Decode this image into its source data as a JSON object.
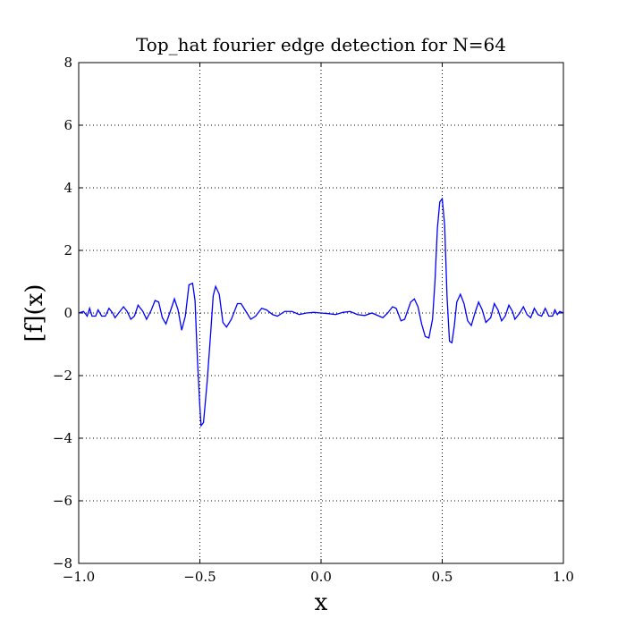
{
  "chart_data": {
    "type": "line",
    "title": "Top_hat fourier edge detection for N=64",
    "x_label": "x",
    "y_label": "[f](x)",
    "color": "#0000ff",
    "grid": true,
    "xlim": [
      -1.0,
      1.0
    ],
    "ylim": [
      -8,
      8
    ],
    "xticks": [
      {
        "value": -1.0,
        "label": "−1.0"
      },
      {
        "value": -0.5,
        "label": "−0.5"
      },
      {
        "value": 0,
        "label": "0.0"
      },
      0.5,
      {
        "value": 1.0,
        "label": "1.0"
      }
    ],
    "yticks": [
      {
        "value": -8,
        "label": "−8"
      },
      {
        "value": -6,
        "label": "−6"
      },
      {
        "value": -4,
        "label": "−4"
      },
      {
        "value": -2,
        "label": "−2"
      },
      0,
      2,
      4,
      6,
      8
    ],
    "x": [
      -1.0,
      -0.98,
      -0.965,
      -0.955,
      -0.945,
      -0.93,
      -0.92,
      -0.905,
      -0.89,
      -0.875,
      -0.86,
      -0.85,
      -0.83,
      -0.815,
      -0.8,
      -0.785,
      -0.77,
      -0.755,
      -0.735,
      -0.72,
      -0.7,
      -0.685,
      -0.67,
      -0.655,
      -0.64,
      -0.62,
      -0.605,
      -0.59,
      -0.575,
      -0.56,
      -0.545,
      -0.53,
      -0.52,
      -0.51,
      -0.5,
      -0.495,
      -0.485,
      -0.47,
      -0.455,
      -0.445,
      -0.435,
      -0.42,
      -0.405,
      -0.39,
      -0.37,
      -0.345,
      -0.33,
      -0.31,
      -0.29,
      -0.27,
      -0.245,
      -0.225,
      -0.2,
      -0.18,
      -0.15,
      -0.12,
      -0.09,
      -0.06,
      -0.03,
      0.0,
      0.03,
      0.06,
      0.09,
      0.12,
      0.15,
      0.18,
      0.21,
      0.24,
      0.255,
      0.275,
      0.295,
      0.31,
      0.33,
      0.345,
      0.37,
      0.385,
      0.4,
      0.415,
      0.43,
      0.445,
      0.46,
      0.47,
      0.48,
      0.49,
      0.5,
      0.51,
      0.52,
      0.53,
      0.54,
      0.55,
      0.56,
      0.575,
      0.59,
      0.605,
      0.62,
      0.635,
      0.65,
      0.665,
      0.68,
      0.7,
      0.715,
      0.73,
      0.745,
      0.76,
      0.775,
      0.79,
      0.8,
      0.82,
      0.835,
      0.85,
      0.865,
      0.88,
      0.895,
      0.91,
      0.925,
      0.94,
      0.955,
      0.965,
      0.975,
      0.985,
      1.0
    ],
    "values": [
      0.0,
      0.05,
      -0.1,
      0.15,
      -0.1,
      -0.1,
      0.1,
      -0.1,
      -0.1,
      0.15,
      0.0,
      -0.15,
      0.05,
      0.2,
      0.05,
      -0.2,
      -0.1,
      0.25,
      0.05,
      -0.2,
      0.1,
      0.4,
      0.35,
      -0.15,
      -0.35,
      0.1,
      0.45,
      0.1,
      -0.55,
      -0.1,
      0.9,
      0.95,
      0.4,
      -1.5,
      -3.0,
      -3.6,
      -3.5,
      -2.2,
      -0.6,
      0.55,
      0.85,
      0.6,
      -0.3,
      -0.45,
      -0.2,
      0.3,
      0.3,
      0.05,
      -0.2,
      -0.1,
      0.15,
      0.1,
      -0.05,
      -0.1,
      0.05,
      0.05,
      -0.05,
      0.0,
      0.02,
      0.0,
      -0.02,
      -0.05,
      0.02,
      0.05,
      -0.05,
      -0.08,
      0.0,
      -0.1,
      -0.15,
      0.0,
      0.2,
      0.15,
      -0.25,
      -0.2,
      0.35,
      0.45,
      0.2,
      -0.35,
      -0.75,
      -0.8,
      -0.2,
      1.0,
      2.7,
      3.55,
      3.65,
      2.8,
      0.5,
      -0.9,
      -0.95,
      -0.4,
      0.35,
      0.6,
      0.3,
      -0.25,
      -0.4,
      0.0,
      0.35,
      0.1,
      -0.3,
      -0.15,
      0.3,
      0.1,
      -0.25,
      -0.1,
      0.25,
      0.05,
      -0.2,
      0.0,
      0.2,
      -0.05,
      -0.15,
      0.15,
      -0.05,
      -0.1,
      0.15,
      -0.1,
      -0.1,
      0.1,
      -0.05,
      0.05,
      0.0
    ]
  }
}
